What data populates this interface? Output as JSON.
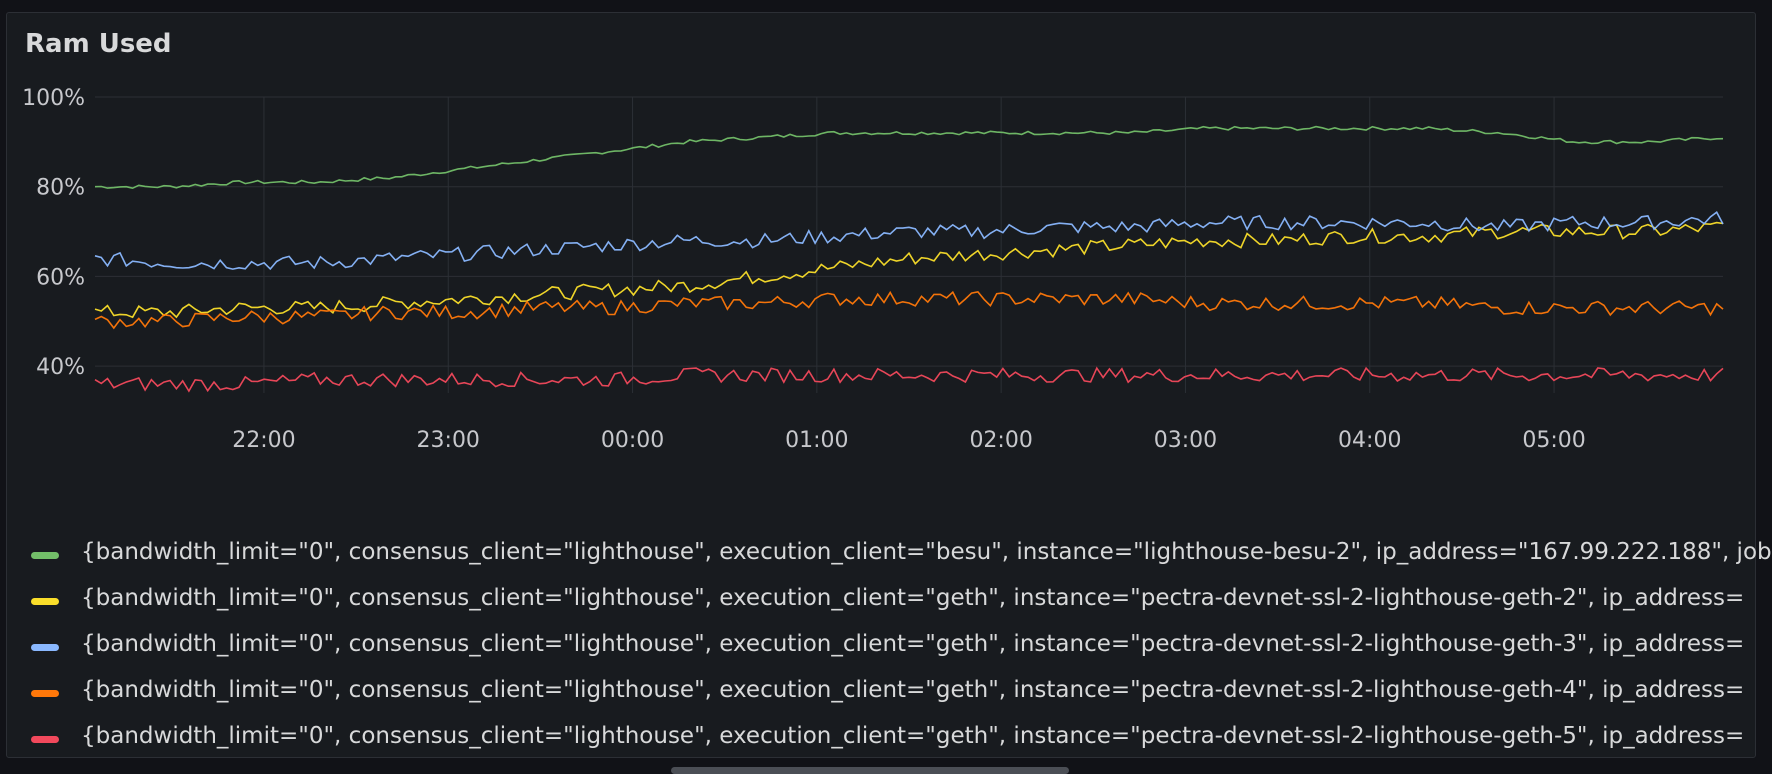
{
  "panel": {
    "title": "Ram Used"
  },
  "colors": {
    "background": "#181b1f",
    "grid": "#2c2f35",
    "text": "#c7c8cc"
  },
  "chart_data": {
    "type": "line",
    "title": "Ram Used",
    "xlabel": "",
    "ylabel": "",
    "x_ticks": [
      "22:00",
      "23:00",
      "00:00",
      "01:00",
      "02:00",
      "03:00",
      "04:00",
      "05:00"
    ],
    "x_range": [
      "21:05",
      "05:55"
    ],
    "y_ticks": [
      "40%",
      "60%",
      "80%",
      "100%"
    ],
    "ylim": [
      34,
      100
    ],
    "grid": true,
    "legend_position": "bottom",
    "series": [
      {
        "name": "{bandwidth_limit=\"0\", consensus_client=\"lighthouse\", execution_client=\"besu\", instance=\"lighthouse-besu-2\", ip_address=\"167.99.222.188\", job",
        "color": "#73bf69",
        "values": [
          80,
          80,
          81,
          81,
          82,
          84,
          86,
          88,
          90,
          91,
          92,
          92,
          92,
          92,
          92,
          93,
          93,
          93,
          93,
          92,
          90,
          90,
          91
        ]
      },
      {
        "name": "{bandwidth_limit=\"0\", consensus_client=\"lighthouse\", execution_client=\"geth\", instance=\"pectra-devnet-ssl-2-lighthouse-geth-2\", ip_address=",
        "color": "#fade2a",
        "values": [
          52,
          52,
          53,
          53,
          54,
          55,
          56,
          57,
          58,
          60,
          62,
          64,
          65,
          66,
          67,
          68,
          68,
          69,
          69,
          70,
          70,
          70,
          71
        ]
      },
      {
        "name": "{bandwidth_limit=\"0\", consensus_client=\"lighthouse\", execution_client=\"geth\", instance=\"pectra-devnet-ssl-2-lighthouse-geth-3\", ip_address=",
        "color": "#8ab8ff",
        "values": [
          64,
          63,
          63,
          63,
          64,
          65,
          66,
          67,
          68,
          68,
          69,
          70,
          70,
          71,
          71,
          72,
          72,
          72,
          72,
          71,
          72,
          72,
          73
        ]
      },
      {
        "name": "{bandwidth_limit=\"0\", consensus_client=\"lighthouse\", execution_client=\"geth\", instance=\"pectra-devnet-ssl-2-lighthouse-geth-4\", ip_address=",
        "color": "#ff780a",
        "values": [
          50,
          50,
          51,
          51,
          52,
          52,
          53,
          53,
          54,
          54,
          55,
          55,
          55,
          55,
          55,
          54,
          54,
          54,
          54,
          53,
          53,
          53,
          53
        ]
      },
      {
        "name": "{bandwidth_limit=\"0\", consensus_client=\"lighthouse\", execution_client=\"geth\", instance=\"pectra-devnet-ssl-2-lighthouse-geth-5\", ip_address=",
        "color": "#f2495c",
        "values": [
          36,
          36,
          36,
          37,
          37,
          37,
          37,
          37,
          38,
          38,
          38,
          38,
          38,
          38,
          38,
          38,
          38,
          38,
          38,
          38,
          38,
          38,
          38
        ]
      }
    ]
  },
  "legend": {
    "items": [
      {
        "label": "{bandwidth_limit=\"0\", consensus_client=\"lighthouse\", execution_client=\"besu\", instance=\"lighthouse-besu-2\", ip_address=\"167.99.222.188\", job",
        "color": "#73bf69"
      },
      {
        "label": "{bandwidth_limit=\"0\", consensus_client=\"lighthouse\", execution_client=\"geth\", instance=\"pectra-devnet-ssl-2-lighthouse-geth-2\", ip_address=",
        "color": "#fade2a"
      },
      {
        "label": "{bandwidth_limit=\"0\", consensus_client=\"lighthouse\", execution_client=\"geth\", instance=\"pectra-devnet-ssl-2-lighthouse-geth-3\", ip_address=",
        "color": "#8ab8ff"
      },
      {
        "label": "{bandwidth_limit=\"0\", consensus_client=\"lighthouse\", execution_client=\"geth\", instance=\"pectra-devnet-ssl-2-lighthouse-geth-4\", ip_address=",
        "color": "#ff780a"
      },
      {
        "label": "{bandwidth_limit=\"0\", consensus_client=\"lighthouse\", execution_client=\"geth\", instance=\"pectra-devnet-ssl-2-lighthouse-geth-5\", ip_address=",
        "color": "#f2495c"
      }
    ]
  }
}
